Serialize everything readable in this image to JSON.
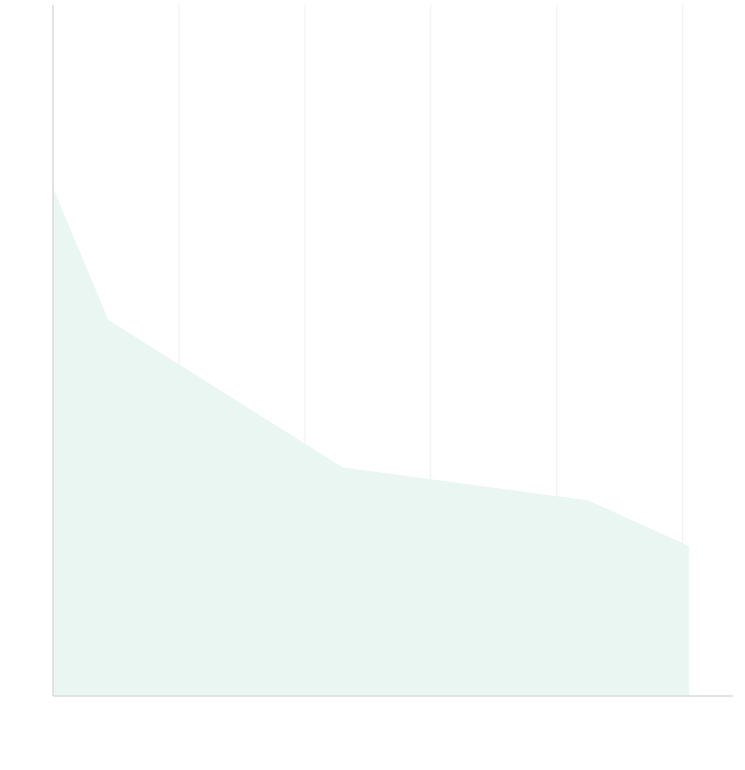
{
  "chart_data": {
    "type": "area",
    "title": "",
    "xlabel": "",
    "ylabel": "",
    "x": [
      0,
      0.44,
      2.3,
      4.25,
      5.2,
      5.05
    ],
    "y": [
      100,
      74,
      45,
      38.5,
      29.5,
      29.5
    ],
    "points": [
      {
        "x": 0.0,
        "y": 100.0
      },
      {
        "x": 0.44,
        "y": 74.0
      },
      {
        "x": 2.3,
        "y": 45.0
      },
      {
        "x": 4.25,
        "y": 38.5
      },
      {
        "x": 5.05,
        "y": 29.5
      }
    ],
    "xlim": [
      0,
      5.4
    ],
    "ylim": [
      0,
      136
    ],
    "x_gridlines": [
      1,
      2,
      3,
      4,
      5
    ],
    "grid": true,
    "legend": "none",
    "colors": {
      "area_fill": "#eaf6f1",
      "grid": "#f0f0f0",
      "axis": "#dcdcdc"
    }
  }
}
